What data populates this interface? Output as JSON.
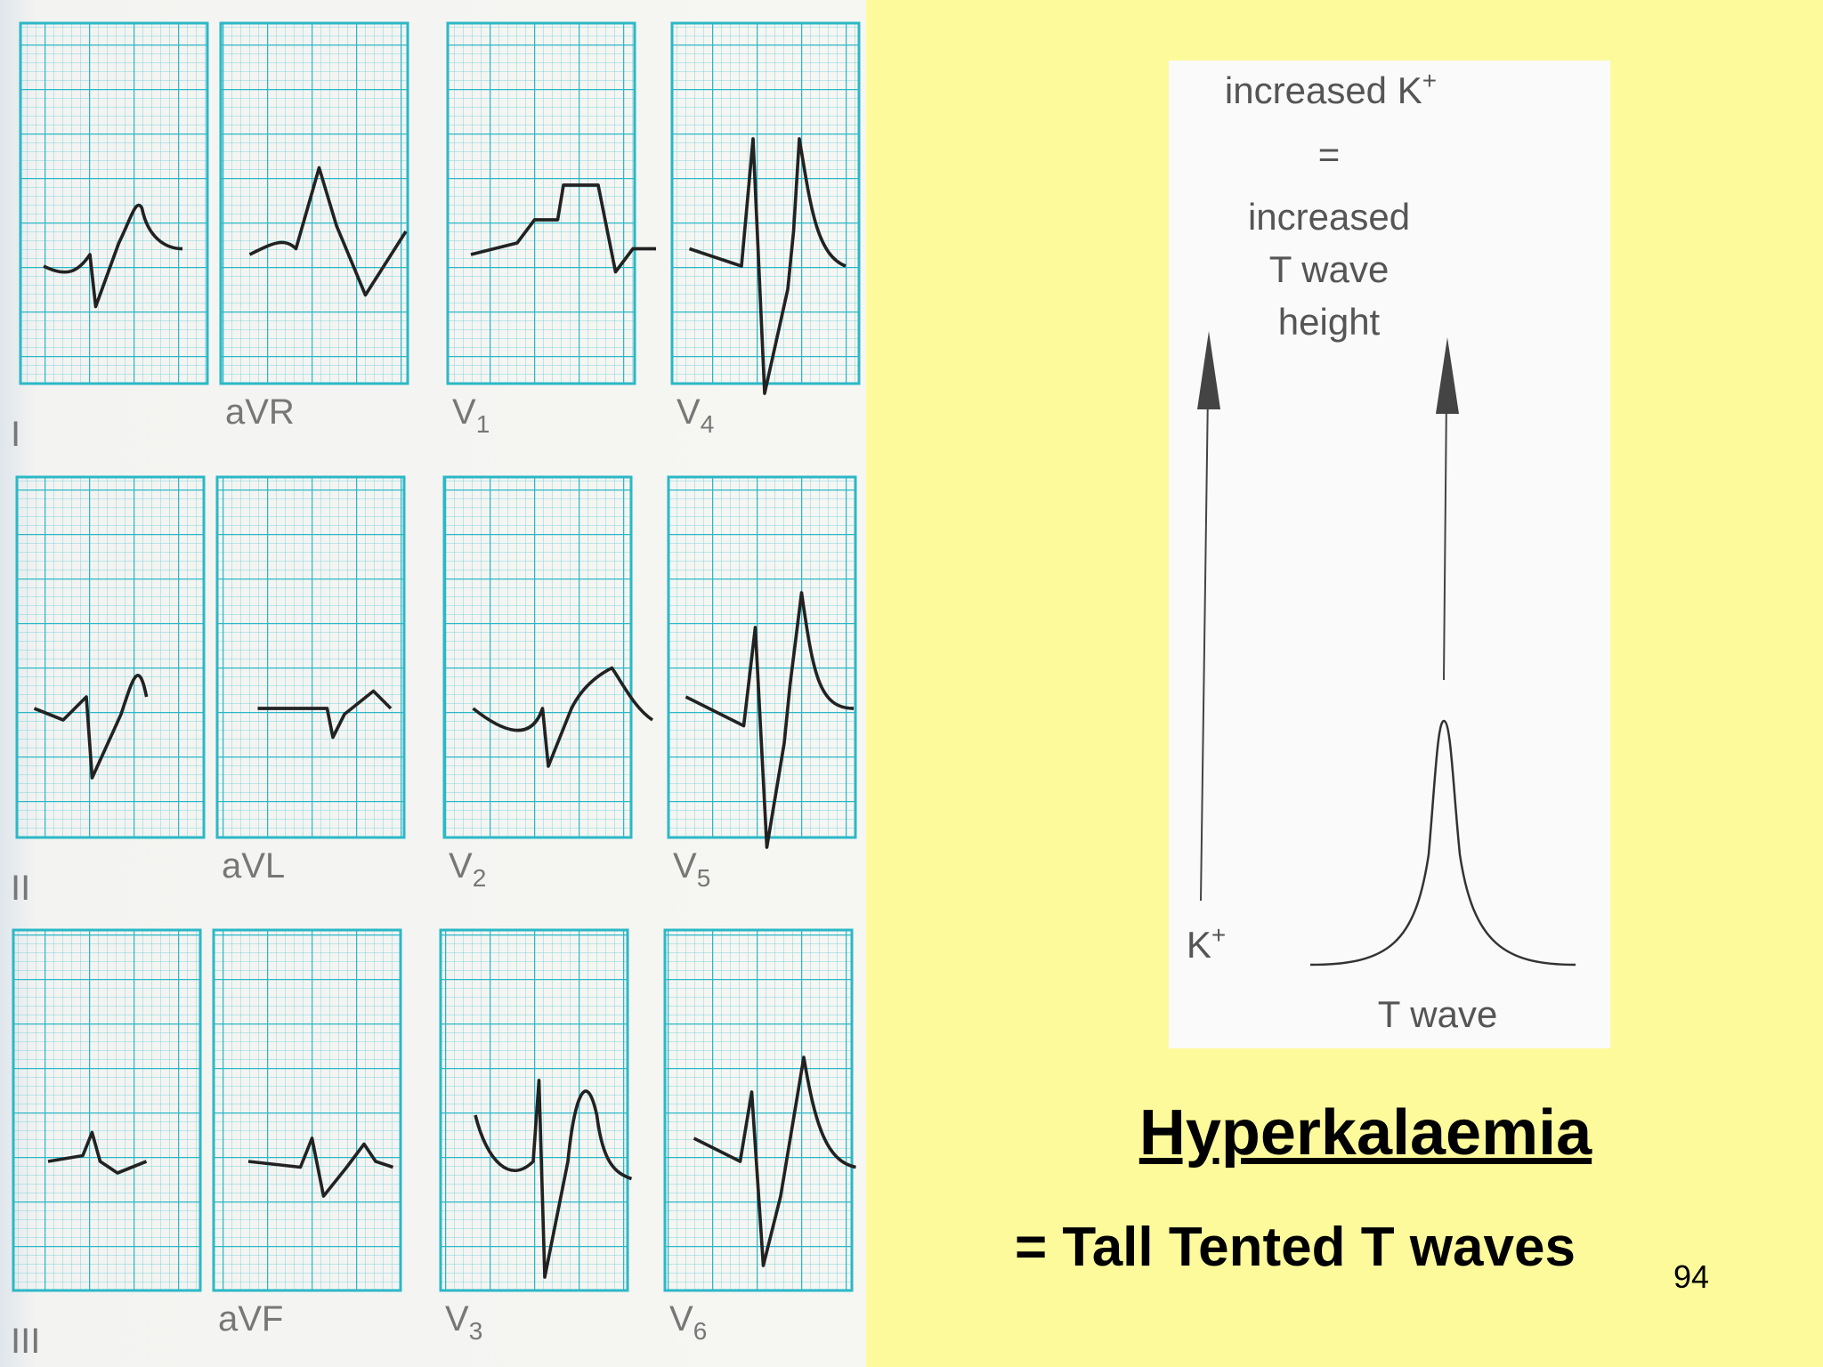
{
  "ecg": {
    "leads": [
      {
        "label": "I"
      },
      {
        "label": "aVR"
      },
      {
        "label": "V",
        "sub": "1"
      },
      {
        "label": "V",
        "sub": "4"
      },
      {
        "label": "II"
      },
      {
        "label": "aVL"
      },
      {
        "label": "V",
        "sub": "2"
      },
      {
        "label": "V",
        "sub": "5"
      },
      {
        "label": "III"
      },
      {
        "label": "aVF"
      },
      {
        "label": "V",
        "sub": "3"
      },
      {
        "label": "V",
        "sub": "6"
      }
    ]
  },
  "diagram": {
    "top_label": {
      "text": "increased K",
      "sup": "+"
    },
    "equals": "=",
    "result_lines": [
      "increased",
      "T wave",
      "height"
    ],
    "axis_label": {
      "text": "K",
      "sup": "+"
    },
    "curve_label": "T wave"
  },
  "title": "Hyperkalaemia",
  "subtitle": "= Tall Tented T waves",
  "page_number": "94"
}
